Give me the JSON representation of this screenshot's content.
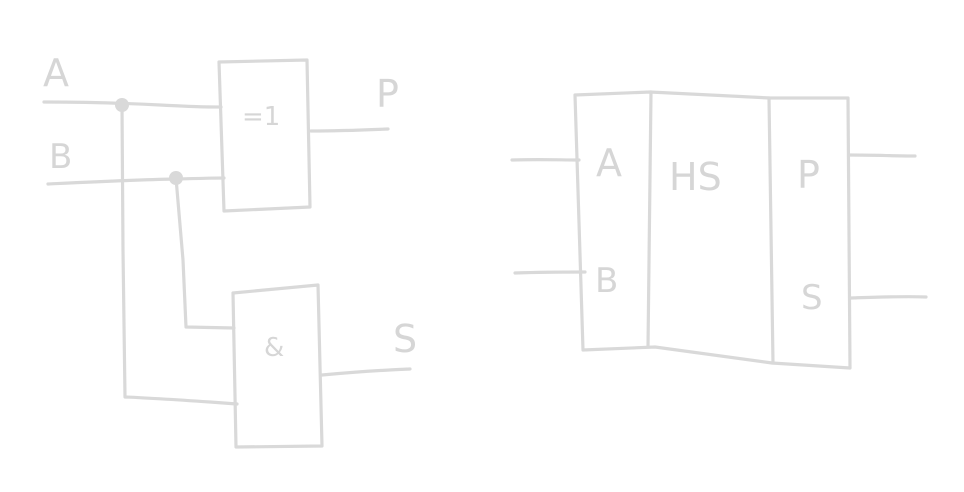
{
  "left_circuit": {
    "inputs": {
      "a": "A",
      "b": "B"
    },
    "xor_gate": {
      "symbol": "=1"
    },
    "and_gate": {
      "symbol": "&"
    },
    "outputs": {
      "p": "P",
      "s": "S"
    }
  },
  "right_block": {
    "inputs": {
      "a": "A",
      "b": "B"
    },
    "name": "HS",
    "outputs": {
      "p": "P",
      "s": "S"
    }
  },
  "colors": {
    "stroke": "#d9d9d9",
    "text": "#d6d6d6",
    "background": "#ffffff"
  }
}
